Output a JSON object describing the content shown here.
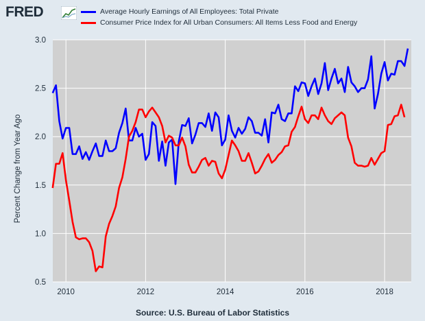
{
  "logo_text": "FRED",
  "legend": [
    {
      "label": "Average Hourly Earnings of All Employees: Total Private",
      "color": "#0000ff"
    },
    {
      "label": "Consumer Price Index for All Urban Consumers: All Items Less Food and Energy",
      "color": "#ff0000"
    }
  ],
  "source": "Source: U.S. Bureau of Labor Statistics",
  "chart_data": {
    "type": "line",
    "ylabel": "Percent Change from Year Ago",
    "xlabel": "",
    "xlim": [
      2009.67,
      2018.67
    ],
    "ylim": [
      0.5,
      3.0
    ],
    "x_ticks": [
      {
        "v": 2010,
        "label": "2010"
      },
      {
        "v": 2012,
        "label": "2012"
      },
      {
        "v": 2014,
        "label": "2014"
      },
      {
        "v": 2016,
        "label": "2016"
      },
      {
        "v": 2018,
        "label": "2018"
      }
    ],
    "y_ticks": [
      {
        "v": 0.5,
        "label": "0.5"
      },
      {
        "v": 1.0,
        "label": "1.0"
      },
      {
        "v": 1.5,
        "label": "1.5"
      },
      {
        "v": 2.0,
        "label": "2.0"
      },
      {
        "v": 2.5,
        "label": "2.5"
      },
      {
        "v": 3.0,
        "label": "3.0"
      }
    ],
    "grid": true,
    "start_year": 2009,
    "start_month": 9,
    "series": [
      {
        "name": "Average Hourly Earnings of All Employees: Total Private",
        "color": "#0000ff",
        "values": [
          2.45,
          2.53,
          2.16,
          1.98,
          2.09,
          2.09,
          1.82,
          1.82,
          1.9,
          1.77,
          1.84,
          1.76,
          1.85,
          1.93,
          1.8,
          1.8,
          1.96,
          1.85,
          1.85,
          1.88,
          2.04,
          2.14,
          2.29,
          1.96,
          1.96,
          2.09,
          2.0,
          2.03,
          1.76,
          1.82,
          2.15,
          2.11,
          1.75,
          1.95,
          1.7,
          1.94,
          1.97,
          1.51,
          1.95,
          2.12,
          2.11,
          2.19,
          1.93,
          2.02,
          2.14,
          2.14,
          2.1,
          2.24,
          2.06,
          2.25,
          2.2,
          1.91,
          1.97,
          2.22,
          2.06,
          1.99,
          2.09,
          2.03,
          2.08,
          2.2,
          2.16,
          2.04,
          2.04,
          2.01,
          2.18,
          1.94,
          2.25,
          2.24,
          2.33,
          2.18,
          2.16,
          2.24,
          2.24,
          2.52,
          2.47,
          2.56,
          2.55,
          2.42,
          2.52,
          2.6,
          2.44,
          2.55,
          2.76,
          2.48,
          2.6,
          2.7,
          2.55,
          2.6,
          2.46,
          2.72,
          2.56,
          2.52,
          2.46,
          2.5,
          2.5,
          2.59,
          2.83,
          2.29,
          2.44,
          2.65,
          2.77,
          2.58,
          2.65,
          2.64,
          2.78,
          2.78,
          2.73,
          2.91
        ]
      },
      {
        "name": "Consumer Price Index for All Urban Consumers: All Items Less Food and Energy",
        "color": "#ff0000",
        "values": [
          1.47,
          1.72,
          1.72,
          1.83,
          1.55,
          1.34,
          1.12,
          0.96,
          0.94,
          0.95,
          0.95,
          0.91,
          0.82,
          0.61,
          0.66,
          0.65,
          0.97,
          1.1,
          1.18,
          1.28,
          1.47,
          1.58,
          1.77,
          2.0,
          2.06,
          2.15,
          2.28,
          2.28,
          2.2,
          2.26,
          2.3,
          2.25,
          2.2,
          2.11,
          1.94,
          2.01,
          1.99,
          1.91,
          1.91,
          1.99,
          1.9,
          1.71,
          1.63,
          1.63,
          1.69,
          1.76,
          1.78,
          1.7,
          1.75,
          1.74,
          1.62,
          1.57,
          1.66,
          1.81,
          1.96,
          1.91,
          1.85,
          1.75,
          1.75,
          1.83,
          1.73,
          1.62,
          1.64,
          1.7,
          1.77,
          1.82,
          1.73,
          1.76,
          1.81,
          1.84,
          1.9,
          1.91,
          2.05,
          2.1,
          2.21,
          2.31,
          2.18,
          2.14,
          2.22,
          2.22,
          2.18,
          2.3,
          2.22,
          2.16,
          2.13,
          2.19,
          2.22,
          2.25,
          2.22,
          1.99,
          1.9,
          1.73,
          1.7,
          1.7,
          1.69,
          1.7,
          1.78,
          1.71,
          1.77,
          1.83,
          1.85,
          2.12,
          2.13,
          2.21,
          2.22,
          2.33,
          2.2
        ]
      }
    ]
  }
}
